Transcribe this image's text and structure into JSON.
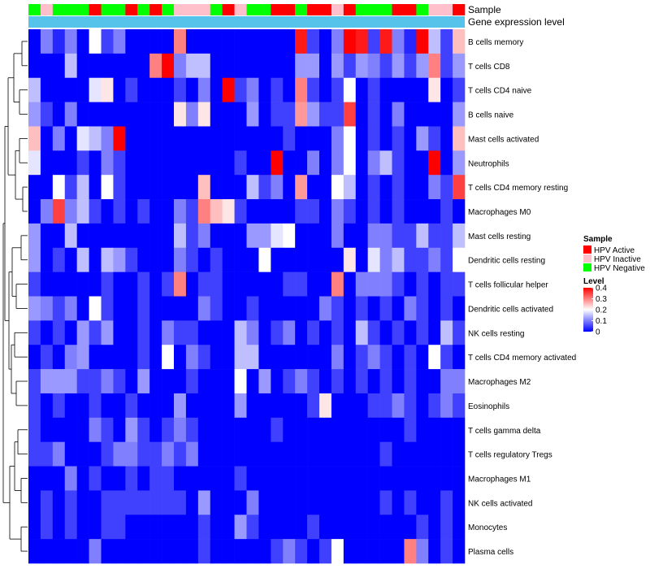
{
  "chart_data": {
    "type": "heatmap",
    "title": "",
    "annotation_labels": [
      "Sample",
      "Gene expression level"
    ],
    "sample_groups": {
      "order": [
        "HPV Active",
        "HPV Inactive",
        "HPV Negative"
      ],
      "colors": {
        "HPV Active": "#ff0000",
        "HPV Inactive": "#ffc0cb",
        "HPV Negative": "#00ff00"
      }
    },
    "gene_expression_color": "#56c3ea",
    "sample_annotation": [
      "HPV Negative",
      "HPV Inactive",
      "HPV Negative",
      "HPV Negative",
      "HPV Negative",
      "HPV Active",
      "HPV Negative",
      "HPV Negative",
      "HPV Active",
      "HPV Negative",
      "HPV Active",
      "HPV Negative",
      "HPV Inactive",
      "HPV Inactive",
      "HPV Inactive",
      "HPV Negative",
      "HPV Active",
      "HPV Inactive",
      "HPV Negative",
      "HPV Negative",
      "HPV Active",
      "HPV Active",
      "HPV Negative",
      "HPV Active",
      "HPV Active",
      "HPV Inactive",
      "HPV Active",
      "HPV Negative",
      "HPV Negative",
      "HPV Negative",
      "HPV Active",
      "HPV Active",
      "HPV Negative",
      "HPV Inactive",
      "HPV Inactive",
      "HPV Active"
    ],
    "rows": [
      "B cells memory",
      "T cells CD8",
      "T cells CD4 naive",
      "B cells naive",
      "Mast cells activated",
      "Neutrophils",
      "T cells CD4 memory resting",
      "Macrophages M0",
      "Mast cells resting",
      "Dendritic cells resting",
      "T cells follicular helper",
      "Dendritic cells activated",
      "NK cells resting",
      "T cells CD4 memory activated",
      "Macrophages M2",
      "Eosinophils",
      "T cells gamma delta",
      "T cells regulatory  Tregs",
      "Macrophages M1",
      "NK cells activated",
      "Monocytes",
      "Plasma cells"
    ],
    "values": [
      [
        0,
        0.1,
        0.03,
        0.1,
        0,
        0.2,
        0.05,
        0.1,
        0,
        0,
        0,
        0,
        0.3,
        0,
        0,
        0,
        0,
        0,
        0,
        0,
        0,
        0,
        0.38,
        0.05,
        0,
        0.1,
        0.4,
        0.38,
        0.05,
        0.38,
        0.1,
        0.03,
        0.4,
        0.15,
        0.05,
        0.25
      ],
      [
        0,
        0,
        0,
        0.15,
        0,
        0,
        0,
        0,
        0,
        0,
        0.3,
        0.4,
        0.1,
        0.15,
        0.15,
        0,
        0,
        0,
        0,
        0,
        0,
        0,
        0.12,
        0.12,
        0,
        0.12,
        0.05,
        0.12,
        0.1,
        0.05,
        0.12,
        0.05,
        0.12,
        0.3,
        0.05,
        0.12
      ],
      [
        0.15,
        0,
        0,
        0,
        0,
        0.18,
        0.22,
        0,
        0.05,
        0,
        0,
        0,
        0.05,
        0,
        0.1,
        0,
        0.4,
        0.05,
        0.1,
        0,
        0.05,
        0,
        0.3,
        0.05,
        0,
        0.05,
        0.2,
        0,
        0.05,
        0,
        0,
        0,
        0,
        0.22,
        0,
        0.05
      ],
      [
        0.12,
        0.05,
        0,
        0.1,
        0,
        0,
        0,
        0,
        0,
        0,
        0,
        0,
        0.22,
        0.1,
        0.22,
        0,
        0,
        0,
        0.12,
        0,
        0.05,
        0.05,
        0.28,
        0.12,
        0.05,
        0.05,
        0.35,
        0,
        0.05,
        0,
        0.1,
        0,
        0,
        0,
        0,
        0.12
      ],
      [
        0.25,
        0,
        0.1,
        0,
        0.18,
        0.15,
        0.1,
        0.4,
        0,
        0,
        0,
        0,
        0,
        0,
        0,
        0,
        0,
        0,
        0,
        0,
        0,
        0.05,
        0,
        0,
        0,
        0.1,
        0.2,
        0,
        0.05,
        0,
        0.05,
        0,
        0.12,
        0.05,
        0,
        0.25
      ],
      [
        0.18,
        0,
        0,
        0,
        0.05,
        0,
        0.1,
        0.05,
        0,
        0,
        0,
        0,
        0,
        0,
        0,
        0,
        0,
        0.05,
        0,
        0,
        0.4,
        0,
        0,
        0.1,
        0,
        0.1,
        0.2,
        0,
        0.1,
        0.15,
        0.05,
        0,
        0,
        0.4,
        0,
        0.12
      ],
      [
        0,
        0,
        0.2,
        0.05,
        0.15,
        0,
        0.2,
        0.05,
        0,
        0,
        0,
        0,
        0,
        0,
        0.25,
        0,
        0,
        0,
        0.15,
        0.05,
        0.1,
        0,
        0.28,
        0,
        0,
        0.2,
        0.15,
        0,
        0.05,
        0,
        0.05,
        0,
        0,
        0.1,
        0.05,
        0.35
      ],
      [
        0,
        0.1,
        0.35,
        0.1,
        0.15,
        0.05,
        0,
        0.05,
        0,
        0.05,
        0,
        0,
        0.1,
        0.05,
        0.3,
        0.25,
        0.22,
        0.05,
        0,
        0,
        0,
        0,
        0.05,
        0.05,
        0,
        0.1,
        0.05,
        0,
        0.05,
        0,
        0.05,
        0,
        0,
        0,
        0.05,
        0
      ],
      [
        0.12,
        0,
        0,
        0.15,
        0,
        0,
        0,
        0,
        0,
        0,
        0,
        0,
        0.15,
        0.05,
        0.1,
        0,
        0,
        0,
        0.12,
        0.12,
        0.18,
        0.2,
        0,
        0,
        0,
        0.1,
        0,
        0,
        0.1,
        0.1,
        0.05,
        0.05,
        0.15,
        0.05,
        0.05,
        0.15
      ],
      [
        0.12,
        0,
        0.05,
        0,
        0.15,
        0,
        0.15,
        0.12,
        0.05,
        0,
        0,
        0,
        0.1,
        0.05,
        0,
        0.05,
        0,
        0,
        0,
        0.2,
        0,
        0,
        0,
        0,
        0,
        0,
        0.22,
        0,
        0.18,
        0.1,
        0.15,
        0.05,
        0.05,
        0.1,
        0.05,
        0.2
      ],
      [
        0.05,
        0,
        0,
        0,
        0,
        0,
        0.05,
        0,
        0,
        0.05,
        0,
        0.05,
        0.3,
        0,
        0.05,
        0.05,
        0,
        0,
        0,
        0,
        0,
        0.05,
        0.05,
        0,
        0,
        0.3,
        0,
        0.1,
        0.1,
        0.1,
        0.05,
        0,
        0.05,
        0,
        0.05,
        0.05
      ],
      [
        0.12,
        0.1,
        0.05,
        0.1,
        0,
        0.2,
        0.05,
        0,
        0,
        0.05,
        0,
        0,
        0,
        0,
        0.1,
        0.05,
        0,
        0,
        0.05,
        0,
        0,
        0,
        0,
        0,
        0.1,
        0.05,
        0,
        0.05,
        0,
        0.05,
        0,
        0.1,
        0.05,
        0,
        0.05,
        0
      ],
      [
        0.05,
        0,
        0.05,
        0,
        0.12,
        0.05,
        0.12,
        0,
        0,
        0.05,
        0,
        0.1,
        0.05,
        0.05,
        0,
        0,
        0,
        0.15,
        0.1,
        0,
        0.05,
        0.1,
        0,
        0.05,
        0,
        0.05,
        0,
        0.15,
        0.05,
        0,
        0.05,
        0,
        0.05,
        0,
        0.15,
        0.05
      ],
      [
        0,
        0.05,
        0,
        0.1,
        0.12,
        0,
        0,
        0,
        0,
        0.05,
        0,
        0.2,
        0,
        0.1,
        0.05,
        0,
        0,
        0.15,
        0.15,
        0,
        0,
        0,
        0,
        0,
        0,
        0.1,
        0,
        0.05,
        0.1,
        0.05,
        0,
        0.05,
        0,
        0.2,
        0.05,
        0
      ],
      [
        0.05,
        0.12,
        0.12,
        0.12,
        0.05,
        0.05,
        0.1,
        0.05,
        0,
        0.12,
        0,
        0,
        0,
        0.05,
        0,
        0,
        0,
        0.2,
        0,
        0.12,
        0,
        0.05,
        0.1,
        0.05,
        0,
        0.05,
        0,
        0.05,
        0,
        0.05,
        0,
        0.05,
        0,
        0,
        0.1,
        0.1
      ],
      [
        0.05,
        0,
        0.05,
        0,
        0,
        0.05,
        0,
        0,
        0.05,
        0,
        0,
        0,
        0.12,
        0,
        0,
        0,
        0,
        0.12,
        0,
        0,
        0,
        0,
        0,
        0.05,
        0.22,
        0,
        0,
        0,
        0.05,
        0.05,
        0.1,
        0.05,
        0,
        0.05,
        0.1,
        0.05
      ],
      [
        0.05,
        0,
        0,
        0,
        0,
        0.1,
        0.05,
        0,
        0.12,
        0.05,
        0,
        0.05,
        0.1,
        0.05,
        0,
        0,
        0,
        0,
        0,
        0,
        0.05,
        0,
        0,
        0,
        0,
        0,
        0,
        0,
        0,
        0,
        0,
        0.05,
        0,
        0,
        0,
        0
      ],
      [
        0.05,
        0.05,
        0.1,
        0,
        0,
        0,
        0.05,
        0.1,
        0.1,
        0.05,
        0.05,
        0.1,
        0.05,
        0.1,
        0,
        0,
        0,
        0,
        0,
        0,
        0,
        0,
        0,
        0,
        0,
        0,
        0,
        0,
        0,
        0.05,
        0,
        0,
        0,
        0,
        0,
        0
      ],
      [
        0,
        0,
        0,
        0.1,
        0,
        0.05,
        0,
        0,
        0.05,
        0,
        0.05,
        0.05,
        0,
        0,
        0,
        0,
        0,
        0.05,
        0,
        0,
        0,
        0,
        0,
        0,
        0,
        0,
        0,
        0,
        0,
        0,
        0,
        0,
        0,
        0,
        0,
        0
      ],
      [
        0,
        0.05,
        0,
        0.05,
        0,
        0,
        0.05,
        0.05,
        0.05,
        0.05,
        0.05,
        0.05,
        0.05,
        0,
        0.12,
        0,
        0,
        0,
        0.1,
        0,
        0,
        0,
        0,
        0,
        0,
        0,
        0,
        0,
        0,
        0.05,
        0,
        0.05,
        0,
        0,
        0.05,
        0
      ],
      [
        0,
        0.05,
        0,
        0.05,
        0,
        0,
        0.05,
        0.05,
        0,
        0,
        0,
        0,
        0,
        0,
        0.05,
        0,
        0,
        0.12,
        0.05,
        0,
        0,
        0,
        0,
        0.05,
        0,
        0,
        0,
        0,
        0,
        0,
        0,
        0,
        0.05,
        0,
        0.05,
        0
      ],
      [
        0,
        0,
        0,
        0,
        0,
        0.1,
        0,
        0,
        0,
        0,
        0,
        0,
        0,
        0,
        0.05,
        0,
        0,
        0,
        0,
        0,
        0.05,
        0.1,
        0.05,
        0,
        0.05,
        0.2,
        0,
        0,
        0,
        0,
        0,
        0.3,
        0.1,
        0,
        0.05,
        0
      ]
    ],
    "legend": {
      "sample_title": "Sample",
      "sample_entries": [
        "HPV Active",
        "HPV Inactive",
        "HPV Negative"
      ],
      "level_title": "Level",
      "level_ticks": [
        "0.4",
        "0.3",
        "0.2",
        "0.1",
        "0"
      ],
      "color_scale": [
        "#0000ff",
        "#ffffff",
        "#ff0000"
      ],
      "range": [
        0,
        0.4
      ]
    }
  }
}
